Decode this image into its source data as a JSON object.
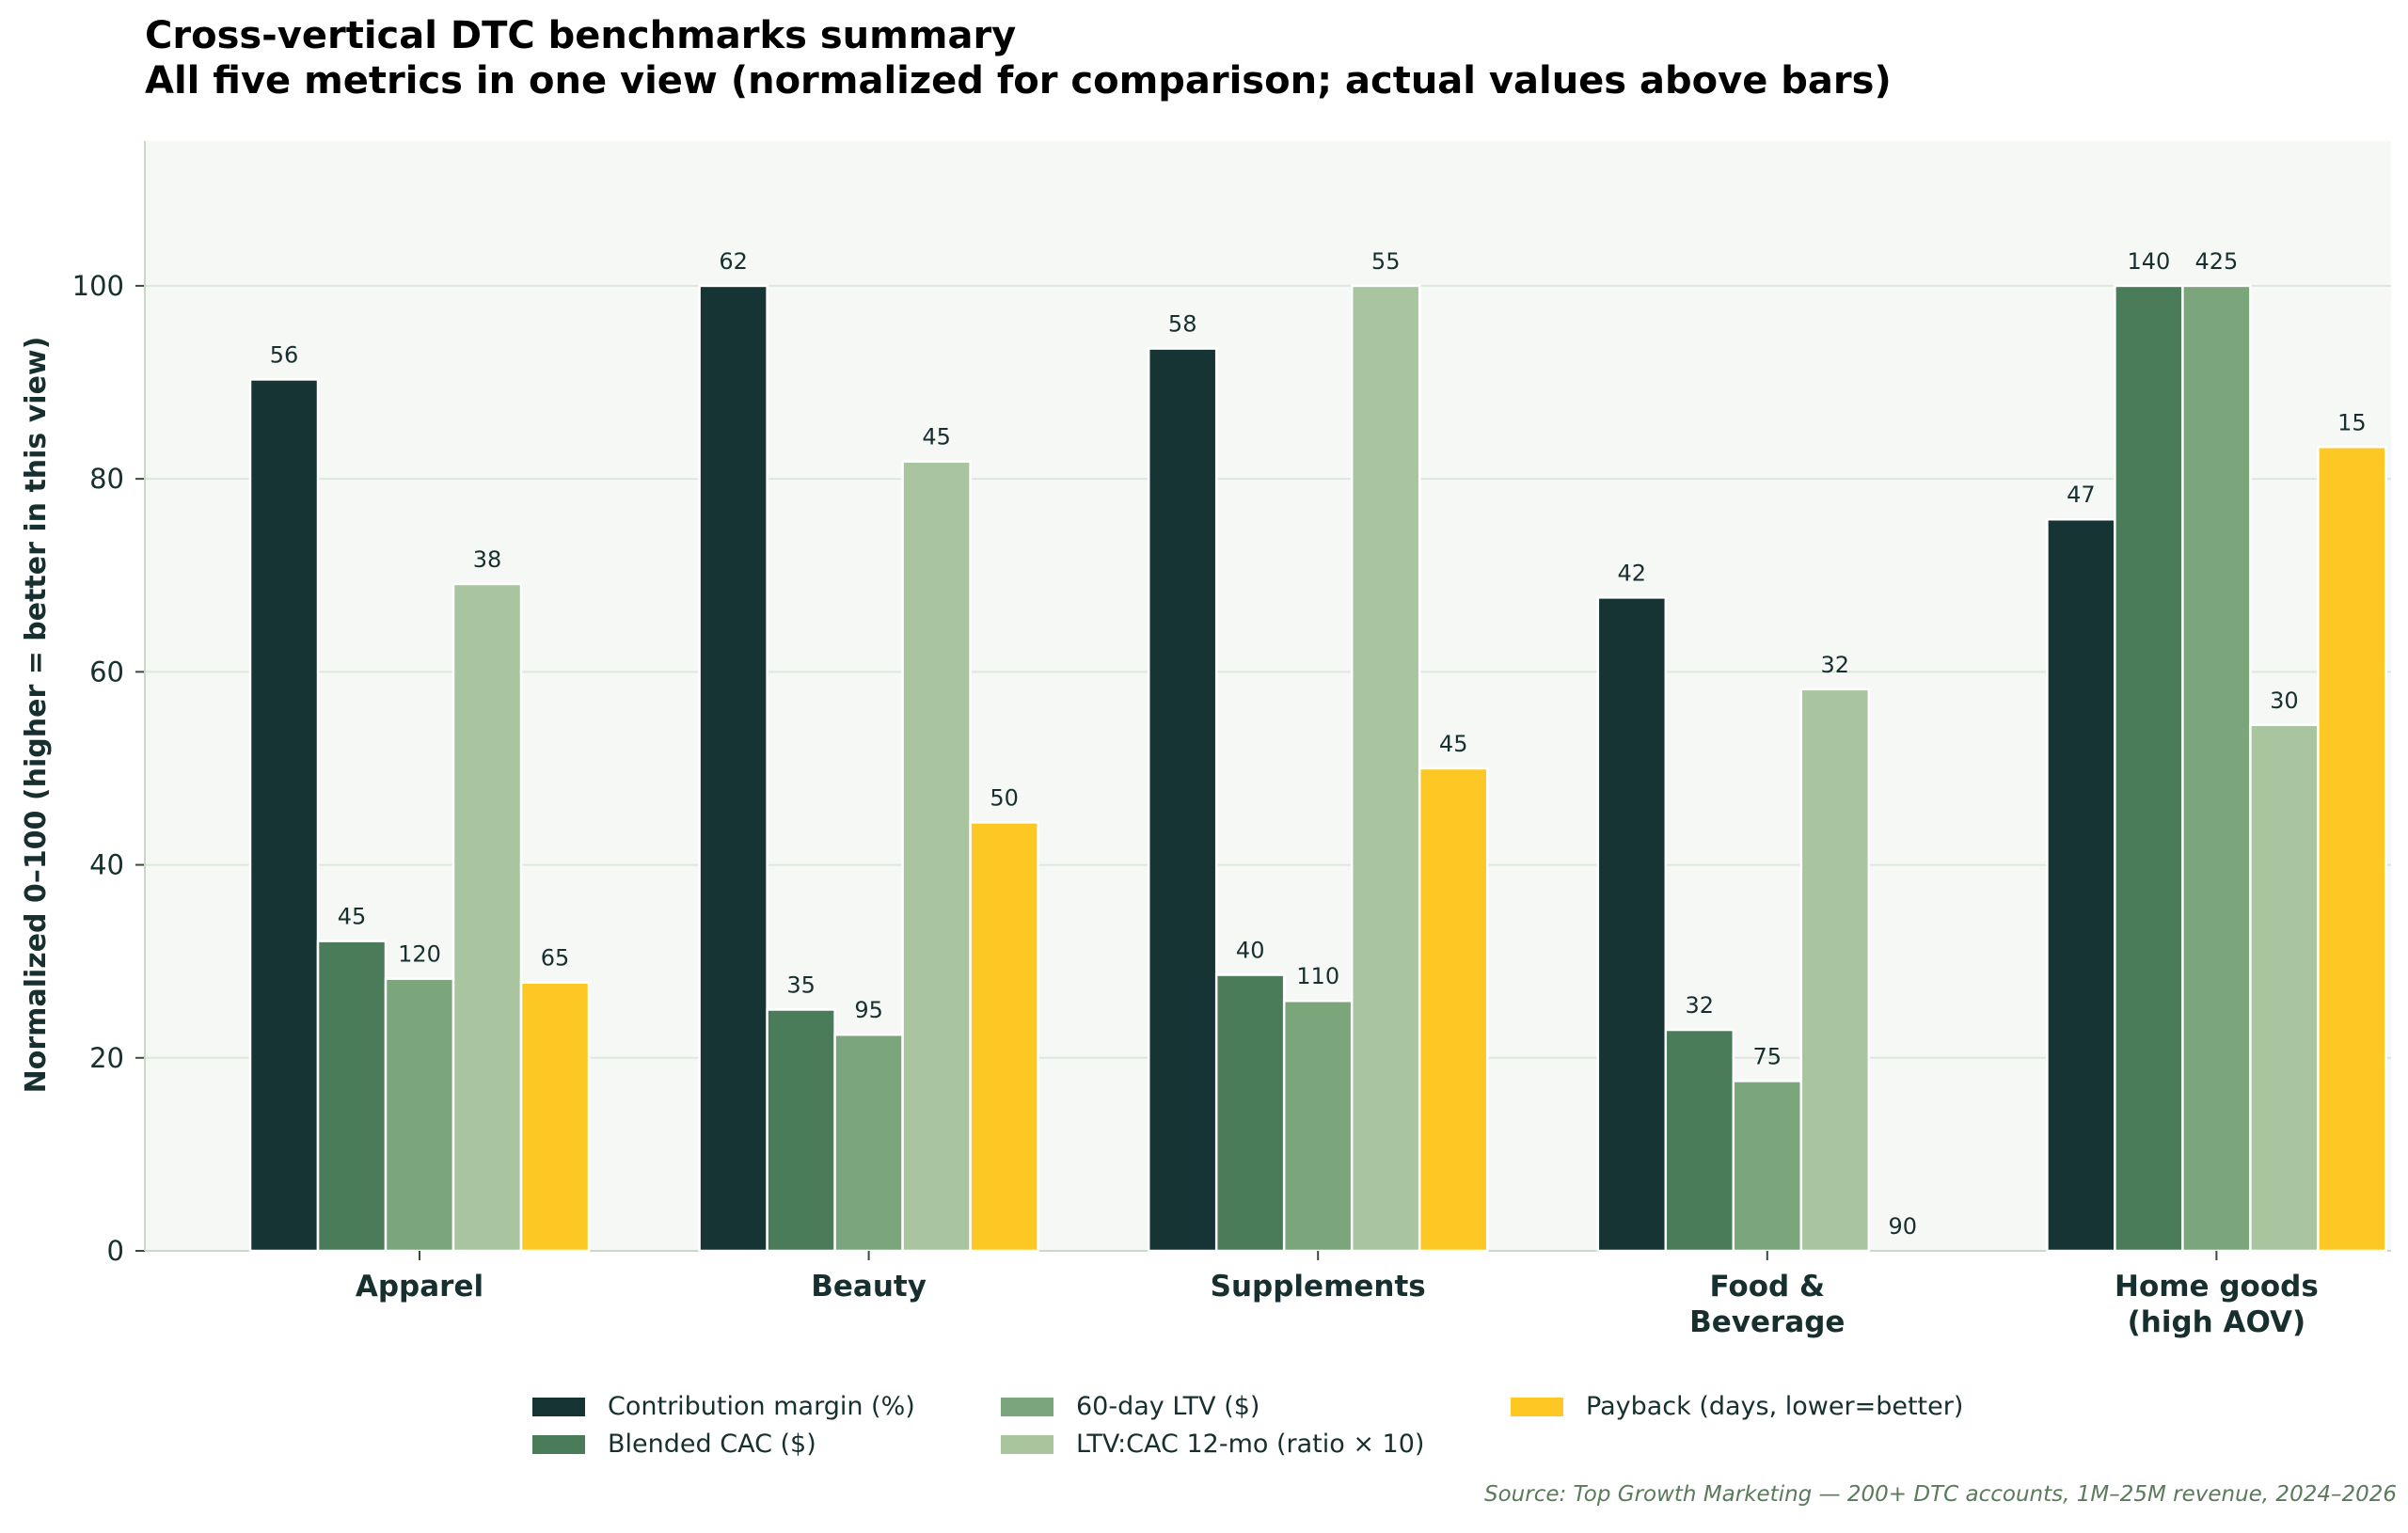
{
  "chart_data": {
    "type": "bar",
    "title": "Cross-vertical DTC benchmarks summary",
    "subtitle": "All five metrics in one view (normalized for comparison; actual values above bars)",
    "ylabel": "Normalized 0–100 (higher = better in this view)",
    "xlabel": "",
    "ylim": [
      0,
      115
    ],
    "yticks": [
      "0",
      "20",
      "40",
      "60",
      "80",
      "100"
    ],
    "grid": true,
    "legend_position": "bottom",
    "categories": [
      [
        "Apparel"
      ],
      [
        "Beauty"
      ],
      [
        "Supplements"
      ],
      [
        "Food &",
        "Beverage"
      ],
      [
        "Home goods",
        "(high AOV)"
      ]
    ],
    "series": [
      {
        "name": "Contribution margin (%)",
        "color": "#173434",
        "values": [
          90.3,
          100,
          93.5,
          67.7,
          75.8
        ],
        "labels": [
          "56",
          "62",
          "58",
          "42",
          "47"
        ]
      },
      {
        "name": "Blended CAC ($)",
        "color": "#4a7c59",
        "values": [
          32.1,
          25.0,
          28.6,
          22.9,
          100
        ],
        "labels": [
          "45",
          "35",
          "40",
          "32",
          "140"
        ]
      },
      {
        "name": "60-day LTV ($)",
        "color": "#7ba57b",
        "values": [
          28.2,
          22.4,
          25.9,
          17.6,
          100
        ],
        "labels": [
          "120",
          "95",
          "110",
          "75",
          "425"
        ]
      },
      {
        "name": "LTV:CAC 12-mo (ratio × 10)",
        "color": "#a8c59f",
        "values": [
          69.1,
          81.8,
          100,
          58.2,
          54.5
        ],
        "labels": [
          "38",
          "45",
          "55",
          "32",
          "30"
        ]
      },
      {
        "name": "Payback (days, lower=better)",
        "color": "#fdc823",
        "values": [
          27.8,
          44.4,
          50.0,
          0,
          83.3
        ],
        "labels": [
          "65",
          "50",
          "45",
          "90",
          "15"
        ]
      }
    ],
    "source": "Source: Top Growth Marketing — 200+ DTC accounts, 1M–25M revenue, 2024–2026"
  }
}
